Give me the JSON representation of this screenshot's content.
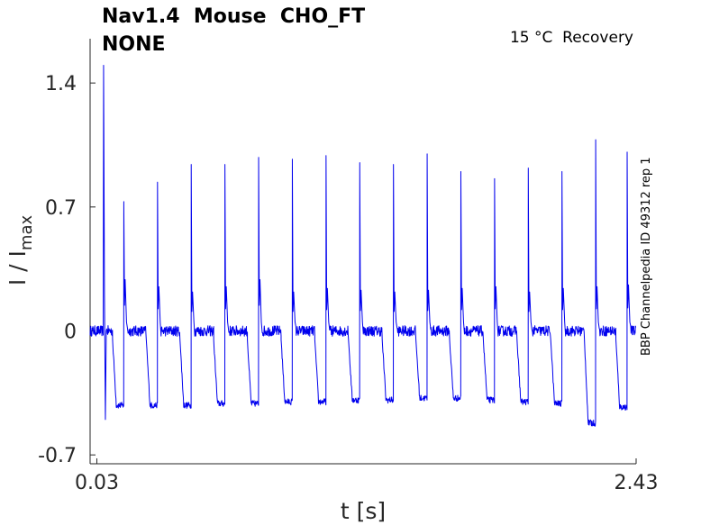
{
  "chart_data": {
    "type": "line",
    "title_line1": "Nav1.4  Mouse  CHO_FT",
    "title_line2": "NONE",
    "annotation": "15 °C  Recovery",
    "side_label": "BBP Channelpedia ID 49312 rep 1",
    "xlabel": "t [s]",
    "ylabel_main": "I / I",
    "ylabel_sub": "max",
    "xlim": [
      0.0,
      2.43
    ],
    "ylim": [
      -0.75,
      1.65
    ],
    "xticks": [
      0.03,
      2.43
    ],
    "xtick_labels": [
      "0.03",
      "2.43"
    ],
    "yticks": [
      1.4,
      0.7,
      0,
      -0.7
    ],
    "ytick_labels": [
      "1.4",
      "0.7",
      "0",
      "-0.7"
    ],
    "grid": false,
    "line_color": "#0000ee",
    "baseline_noise": 0.03,
    "initial_transient": {
      "t": 0.06,
      "peak": 1.5,
      "trough": -0.5
    },
    "pulses": [
      {
        "t": 0.15,
        "peak": 0.73,
        "post_peak": 0.29,
        "tail": -0.42
      },
      {
        "t": 0.3,
        "peak": 0.84,
        "post_peak": 0.25,
        "tail": -0.42
      },
      {
        "t": 0.45,
        "peak": 0.94,
        "post_peak": 0.22,
        "tail": -0.42
      },
      {
        "t": 0.6,
        "peak": 0.94,
        "post_peak": 0.25,
        "tail": -0.41
      },
      {
        "t": 0.75,
        "peak": 0.98,
        "post_peak": 0.29,
        "tail": -0.41
      },
      {
        "t": 0.9,
        "peak": 0.97,
        "post_peak": 0.22,
        "tail": -0.4
      },
      {
        "t": 1.05,
        "peak": 0.99,
        "post_peak": 0.24,
        "tail": -0.4
      },
      {
        "t": 1.2,
        "peak": 0.95,
        "post_peak": 0.23,
        "tail": -0.39
      },
      {
        "t": 1.35,
        "peak": 0.94,
        "post_peak": 0.22,
        "tail": -0.39
      },
      {
        "t": 1.5,
        "peak": 1.0,
        "post_peak": 0.23,
        "tail": -0.38
      },
      {
        "t": 1.65,
        "peak": 0.9,
        "post_peak": 0.24,
        "tail": -0.38
      },
      {
        "t": 1.8,
        "peak": 0.86,
        "post_peak": 0.25,
        "tail": -0.39
      },
      {
        "t": 1.95,
        "peak": 0.92,
        "post_peak": 0.22,
        "tail": -0.4
      },
      {
        "t": 2.1,
        "peak": 0.9,
        "post_peak": 0.24,
        "tail": -0.41
      },
      {
        "t": 2.25,
        "peak": 1.08,
        "post_peak": 0.25,
        "tail": -0.52
      },
      {
        "t": 2.39,
        "peak": 1.01,
        "post_peak": 0.26,
        "tail": -0.43
      }
    ]
  }
}
